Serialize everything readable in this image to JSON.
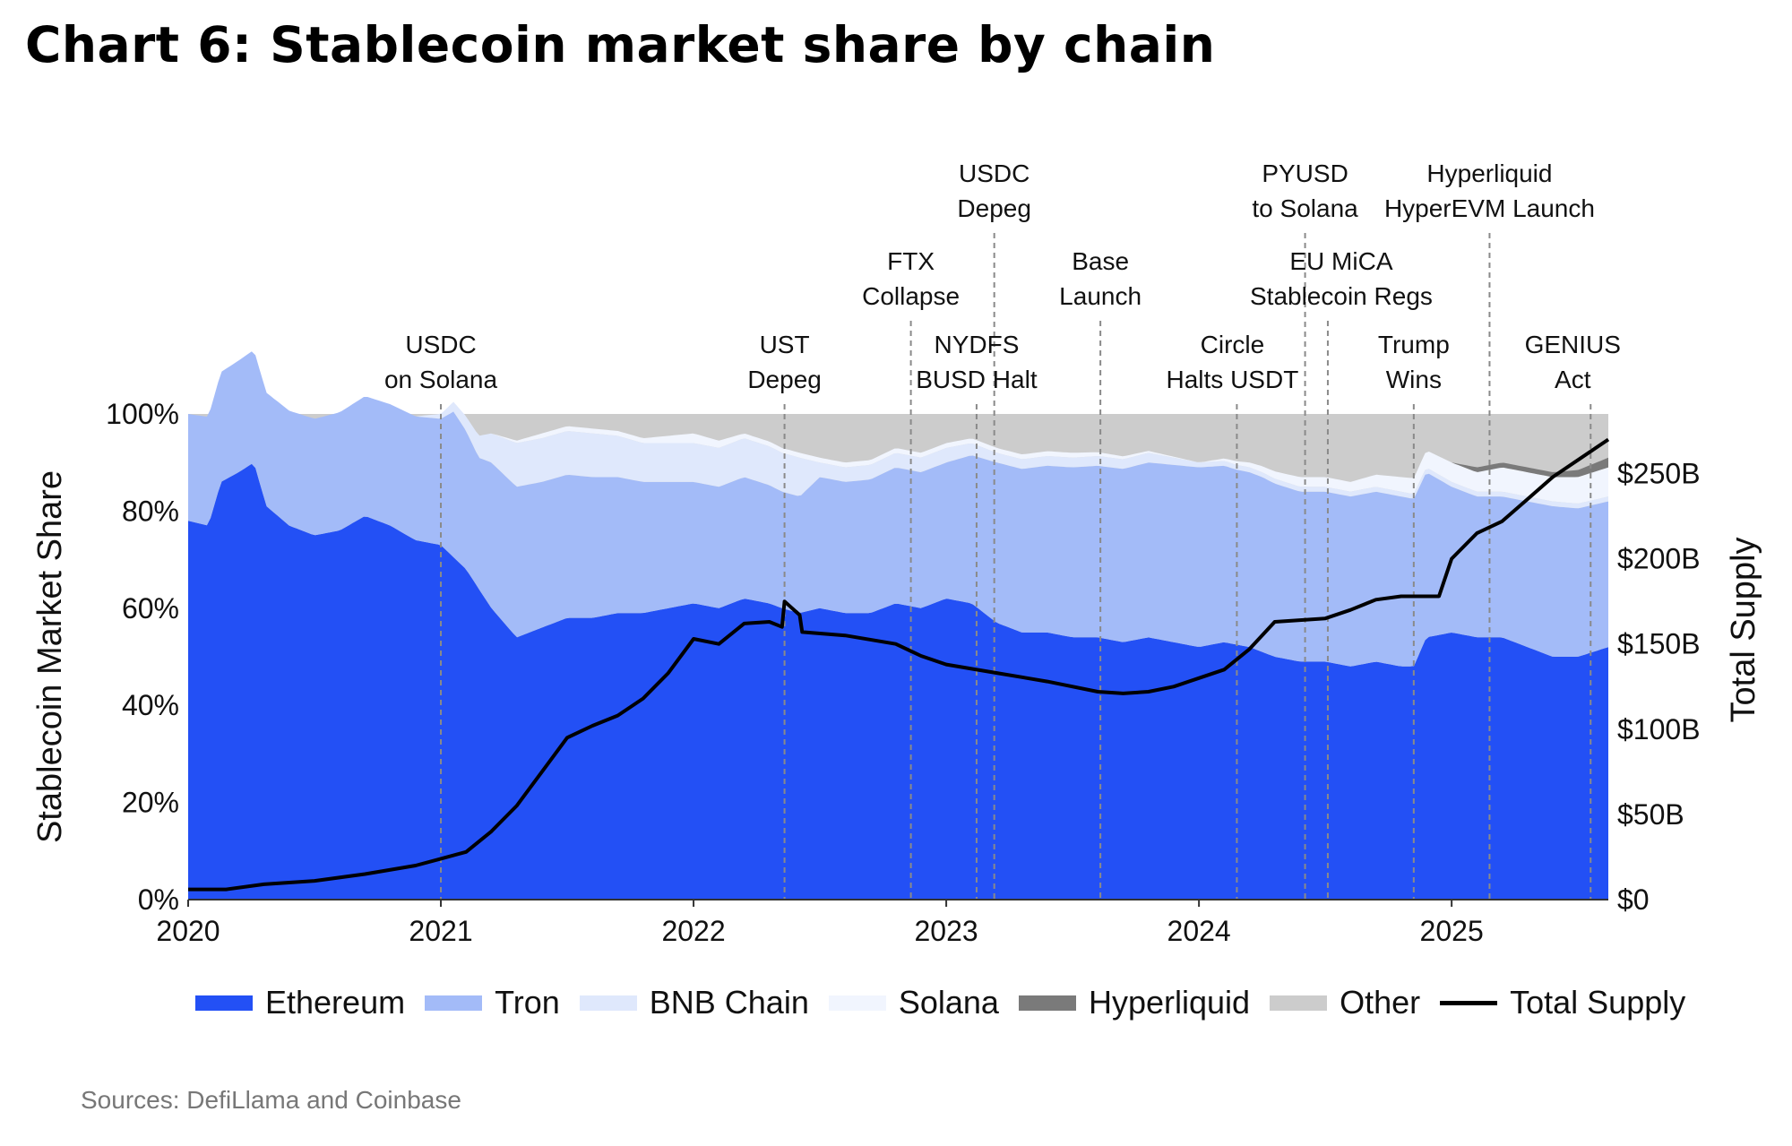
{
  "title": "Chart 6: Stablecoin market share by chain",
  "source": "Sources: DefiLlama and Coinbase",
  "chart_data": {
    "type": "area",
    "stacked": true,
    "percent_axis": {
      "label": "Stablecoin Market Share",
      "ticks": [
        "0%",
        "20%",
        "40%",
        "60%",
        "80%",
        "100%"
      ],
      "range": [
        0,
        100
      ]
    },
    "supply_axis": {
      "label": "Total Supply",
      "ticks": [
        "$0",
        "$50B",
        "$100B",
        "$150B",
        "$200B",
        "$250B"
      ],
      "range": [
        0,
        285
      ]
    },
    "x_ticks": [
      "2020",
      "2021",
      "2022",
      "2023",
      "2024",
      "2025"
    ],
    "x_range": [
      2020.0,
      2025.62
    ],
    "colors": {
      "Ethereum": "#2350f5",
      "Tron": "#a3bbf8",
      "BNB Chain": "#dfe8fc",
      "Solana": "#f1f5fe",
      "Hyperliquid": "#7a7a7a",
      "Other": "#cccccc",
      "Total Supply": "#000000",
      "guide": "#8a8a8a"
    },
    "series": [
      {
        "name": "Ethereum",
        "x": [
          2020.0,
          2020.08,
          2020.13,
          2020.2,
          2020.26,
          2020.31,
          2020.4,
          2020.5,
          2020.6,
          2020.7,
          2020.8,
          2020.9,
          2021.0,
          2021.1,
          2021.2,
          2021.3,
          2021.4,
          2021.5,
          2021.6,
          2021.7,
          2021.8,
          2021.9,
          2022.0,
          2022.1,
          2022.2,
          2022.3,
          2022.35,
          2022.42,
          2022.5,
          2022.6,
          2022.7,
          2022.8,
          2022.9,
          2023.0,
          2023.1,
          2023.2,
          2023.3,
          2023.4,
          2023.5,
          2023.6,
          2023.7,
          2023.8,
          2023.9,
          2024.0,
          2024.1,
          2024.2,
          2024.3,
          2024.4,
          2024.5,
          2024.6,
          2024.7,
          2024.8,
          2024.85,
          2024.9,
          2025.0,
          2025.1,
          2025.2,
          2025.3,
          2025.4,
          2025.5,
          2025.62
        ],
        "values": [
          78,
          77,
          86,
          88,
          90,
          81,
          77,
          75,
          76,
          79,
          77,
          74,
          73,
          68,
          60,
          54,
          56,
          58,
          58,
          59,
          59,
          60,
          61,
          60,
          62,
          61,
          60,
          59,
          60,
          59,
          59,
          61,
          60,
          62,
          61,
          57,
          55,
          55,
          54,
          54,
          53,
          54,
          53,
          52,
          53,
          52,
          50,
          49,
          49,
          48,
          49,
          48,
          48,
          54,
          55,
          54,
          54,
          52,
          50,
          50,
          52
        ]
      },
      {
        "name": "Tron",
        "x": [
          2020.0,
          2020.2,
          2020.5,
          2020.8,
          2021.0,
          2021.05,
          2021.15,
          2021.2,
          2021.3,
          2021.4,
          2021.6,
          2021.8,
          2022.0,
          2022.2,
          2022.35,
          2022.42,
          2022.5,
          2022.6,
          2022.8,
          2023.0,
          2023.2,
          2023.5,
          2023.8,
          2024.0,
          2024.15,
          2024.25,
          2024.4,
          2024.6,
          2024.8,
          2024.9,
          2025.0,
          2025.1,
          2025.2,
          2025.4,
          2025.62
        ],
        "values": [
          22,
          23,
          24,
          25,
          26,
          30,
          27,
          30,
          31,
          30,
          29,
          27,
          25,
          25,
          24,
          24,
          27,
          27,
          28,
          28,
          33,
          35,
          36,
          37,
          36,
          36,
          35,
          35,
          35,
          34,
          30,
          29,
          29,
          31,
          30
        ]
      },
      {
        "name": "BNB Chain",
        "x": [
          2020.0,
          2020.9,
          2021.0,
          2021.1,
          2021.2,
          2021.3,
          2021.4,
          2021.6,
          2021.8,
          2022.0,
          2022.2,
          2022.35,
          2022.42,
          2022.5,
          2022.6,
          2022.8,
          2023.0,
          2023.2,
          2023.5,
          2023.8,
          2024.0,
          2024.2,
          2024.4,
          2024.6,
          2024.8,
          2025.0,
          2025.2,
          2025.4,
          2025.62
        ],
        "values": [
          0,
          0,
          1,
          3,
          6,
          9,
          9,
          9,
          8,
          8,
          8,
          8,
          8,
          3,
          3,
          3,
          3,
          2,
          2,
          2,
          1,
          1,
          1,
          1,
          1,
          1,
          1,
          1,
          1
        ]
      },
      {
        "name": "Solana",
        "x": [
          2020.0,
          2021.0,
          2021.2,
          2021.4,
          2021.6,
          2021.8,
          2022.0,
          2022.2,
          2022.35,
          2022.42,
          2022.5,
          2022.6,
          2022.8,
          2023.0,
          2023.5,
          2024.0,
          2024.2,
          2024.4,
          2024.6,
          2024.8,
          2025.0,
          2025.1,
          2025.2,
          2025.4,
          2025.62
        ],
        "values": [
          0,
          0,
          0,
          1,
          1,
          1,
          2,
          1,
          1,
          1,
          1,
          1,
          1,
          1,
          1,
          0,
          1,
          2,
          2,
          3,
          4,
          4,
          5,
          5,
          6
        ]
      },
      {
        "name": "Hyperliquid",
        "x": [
          2020.0,
          2025.0,
          2025.1,
          2025.2,
          2025.4,
          2025.62
        ],
        "values": [
          0,
          0,
          1,
          1,
          1,
          2
        ]
      }
    ],
    "total_supply": {
      "name": "Total Supply",
      "unit": "$B",
      "x": [
        2020.0,
        2020.15,
        2020.3,
        2020.5,
        2020.7,
        2020.9,
        2021.0,
        2021.1,
        2021.2,
        2021.3,
        2021.4,
        2021.5,
        2021.6,
        2021.7,
        2021.8,
        2021.9,
        2022.0,
        2022.1,
        2022.2,
        2022.3,
        2022.35,
        2022.36,
        2022.42,
        2022.43,
        2022.6,
        2022.8,
        2022.9,
        2023.0,
        2023.2,
        2023.4,
        2023.6,
        2023.7,
        2023.8,
        2023.9,
        2024.0,
        2024.1,
        2024.2,
        2024.3,
        2024.4,
        2024.5,
        2024.6,
        2024.7,
        2024.8,
        2024.85,
        2024.95,
        2025.0,
        2025.1,
        2025.2,
        2025.3,
        2025.4,
        2025.5,
        2025.62
      ],
      "values": [
        6,
        6,
        9,
        11,
        15,
        20,
        24,
        28,
        40,
        55,
        75,
        95,
        102,
        108,
        118,
        133,
        153,
        150,
        162,
        163,
        160,
        175,
        167,
        157,
        155,
        150,
        143,
        138,
        133,
        128,
        122,
        121,
        122,
        125,
        130,
        135,
        147,
        163,
        164,
        165,
        170,
        176,
        178,
        178,
        178,
        200,
        215,
        222,
        235,
        248,
        258,
        270
      ]
    },
    "events": [
      {
        "label_lines": [
          "USDC",
          "on Solana"
        ],
        "x": 2021.0
      },
      {
        "label_lines": [
          "UST",
          "Depeg"
        ],
        "x": 2022.36
      },
      {
        "label_lines": [
          "FTX",
          "Collapse"
        ],
        "x": 2022.86
      },
      {
        "label_lines": [
          "NYDFS",
          "BUSD Halt"
        ],
        "x": 2023.12
      },
      {
        "label_lines": [
          "USDC",
          "Depeg"
        ],
        "x": 2023.19
      },
      {
        "label_lines": [
          "Base",
          "Launch"
        ],
        "x": 2023.61
      },
      {
        "label_lines": [
          "Circle",
          "Halts USDT"
        ],
        "x": 2024.15
      },
      {
        "label_lines": [
          "EU MiCA",
          "Stablecoin Regs"
        ],
        "x": 2024.51
      },
      {
        "label_lines": [
          "PYUSD",
          "to Solana"
        ],
        "x": 2024.42
      },
      {
        "label_lines": [
          "Trump",
          "Wins"
        ],
        "x": 2024.85
      },
      {
        "label_lines": [
          "Hyperliquid",
          "HyperEVM Launch"
        ],
        "x": 2025.15
      },
      {
        "label_lines": [
          "GENIUS",
          "Act"
        ],
        "x": 2025.55
      }
    ],
    "legend": {
      "placement": "bottom",
      "entries": [
        "Ethereum",
        "Tron",
        "BNB Chain",
        "Solana",
        "Hyperliquid",
        "Other",
        "Total Supply"
      ]
    }
  }
}
